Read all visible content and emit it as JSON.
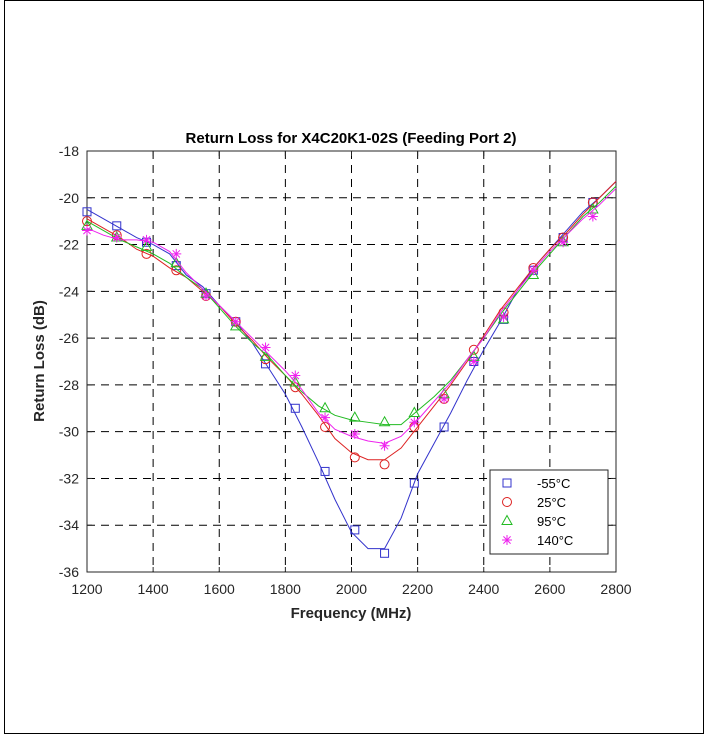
{
  "chart_data": {
    "type": "line",
    "title": "Return Loss for X4C20K1-02S (Feeding Port 2)",
    "xlabel": "Frequency (MHz)",
    "ylabel": "Return Loss (dB)",
    "xlim": [
      1200,
      2800
    ],
    "ylim": [
      -36,
      -18
    ],
    "xticks": [
      "1200",
      "1400",
      "1600",
      "1800",
      "2000",
      "2200",
      "2400",
      "2600",
      "2800"
    ],
    "yticks": [
      "-18",
      "-20",
      "-22",
      "-24",
      "-26",
      "-28",
      "-30",
      "-32",
      "-34",
      "-36"
    ],
    "grid": true,
    "legend_position": "bottom-right",
    "series": [
      {
        "name": "-55°C",
        "color": "#3333cc",
        "marker": "square",
        "x": [
          1200,
          1290,
          1380,
          1470,
          1560,
          1650,
          1740,
          1830,
          1920,
          2010,
          2100,
          2190,
          2280,
          2370,
          2460,
          2550,
          2640,
          2730
        ],
        "y": [
          -20.6,
          -21.2,
          -21.9,
          -22.9,
          -24.1,
          -25.3,
          -27.1,
          -29.0,
          -31.7,
          -34.2,
          -35.2,
          -32.2,
          -29.8,
          -27.0,
          -25.2,
          -23.1,
          -21.7,
          -20.2
        ],
        "line_x": [
          1200,
          1250,
          1300,
          1350,
          1400,
          1450,
          1500,
          1550,
          1600,
          1650,
          1700,
          1750,
          1800,
          1850,
          1900,
          1950,
          2000,
          2050,
          2100,
          2150,
          2200,
          2250,
          2300,
          2350,
          2400,
          2450,
          2500,
          2550,
          2600,
          2650,
          2700,
          2750,
          2800
        ],
        "line_y": [
          -20.5,
          -20.9,
          -21.3,
          -21.7,
          -22.0,
          -22.4,
          -23.3,
          -23.8,
          -24.6,
          -25.3,
          -26.2,
          -27.3,
          -28.4,
          -29.8,
          -31.3,
          -32.9,
          -34.3,
          -35.0,
          -35.0,
          -33.7,
          -31.8,
          -30.5,
          -29.2,
          -27.8,
          -26.5,
          -25.3,
          -24.0,
          -23.0,
          -22.2,
          -21.4,
          -20.6,
          -20.0,
          -19.3
        ]
      },
      {
        "name": "25°C",
        "color": "#dd2222",
        "marker": "circle",
        "x": [
          1200,
          1290,
          1380,
          1470,
          1560,
          1650,
          1740,
          1830,
          1920,
          2010,
          2100,
          2190,
          2280,
          2370,
          2460,
          2550,
          2640,
          2730
        ],
        "y": [
          -21.0,
          -21.6,
          -22.4,
          -23.1,
          -24.2,
          -25.3,
          -26.9,
          -28.1,
          -29.8,
          -31.1,
          -31.4,
          -29.8,
          -28.6,
          -26.5,
          -24.9,
          -23.0,
          -21.7,
          -20.2
        ],
        "line_x": [
          1200,
          1250,
          1300,
          1350,
          1400,
          1450,
          1500,
          1550,
          1600,
          1650,
          1700,
          1750,
          1800,
          1850,
          1900,
          1950,
          2000,
          2050,
          2100,
          2150,
          2200,
          2250,
          2300,
          2350,
          2400,
          2450,
          2500,
          2550,
          2600,
          2650,
          2700,
          2750,
          2800
        ],
        "line_y": [
          -20.9,
          -21.3,
          -21.7,
          -22.2,
          -22.5,
          -23.0,
          -23.4,
          -24.0,
          -24.6,
          -25.4,
          -26.1,
          -26.9,
          -27.6,
          -28.4,
          -29.3,
          -30.3,
          -30.9,
          -31.2,
          -31.2,
          -30.7,
          -29.8,
          -28.9,
          -28.0,
          -27.0,
          -25.9,
          -24.8,
          -23.9,
          -23.0,
          -22.2,
          -21.5,
          -20.7,
          -20.0,
          -19.3
        ]
      },
      {
        "name": "95°C",
        "color": "#22bb22",
        "marker": "triangle",
        "x": [
          1200,
          1290,
          1380,
          1470,
          1560,
          1650,
          1740,
          1830,
          1920,
          2010,
          2100,
          2190,
          2280,
          2370,
          2460,
          2550,
          2640,
          2730
        ],
        "y": [
          -21.2,
          -21.7,
          -22.1,
          -22.8,
          -24.1,
          -25.5,
          -26.8,
          -27.9,
          -29.0,
          -29.4,
          -29.6,
          -29.2,
          -28.4,
          -26.8,
          -25.2,
          -23.3,
          -21.9,
          -20.5
        ],
        "line_x": [
          1200,
          1250,
          1300,
          1350,
          1400,
          1450,
          1500,
          1550,
          1600,
          1650,
          1700,
          1750,
          1800,
          1850,
          1900,
          1950,
          2000,
          2050,
          2100,
          2150,
          2200,
          2250,
          2300,
          2350,
          2400,
          2450,
          2500,
          2550,
          2600,
          2650,
          2700,
          2750,
          2800
        ],
        "line_y": [
          -21.0,
          -21.4,
          -21.8,
          -22.1,
          -22.4,
          -22.8,
          -23.4,
          -23.9,
          -24.7,
          -25.5,
          -26.2,
          -26.8,
          -27.6,
          -28.3,
          -28.9,
          -29.3,
          -29.5,
          -29.6,
          -29.7,
          -29.7,
          -29.1,
          -28.5,
          -27.8,
          -26.9,
          -26.0,
          -25.0,
          -24.1,
          -23.2,
          -22.4,
          -21.6,
          -20.8,
          -20.2,
          -19.5
        ]
      },
      {
        "name": "140°C",
        "color": "#ee22ee",
        "marker": "asterisk",
        "x": [
          1200,
          1290,
          1380,
          1470,
          1560,
          1650,
          1740,
          1830,
          1920,
          2010,
          2100,
          2190,
          2280,
          2370,
          2460,
          2550,
          2640,
          2730
        ],
        "y": [
          -21.4,
          -21.7,
          -21.8,
          -22.4,
          -24.2,
          -25.3,
          -26.4,
          -27.6,
          -29.4,
          -30.1,
          -30.6,
          -29.6,
          -28.6,
          -27.0,
          -25.1,
          -23.1,
          -21.9,
          -20.8
        ],
        "line_x": [
          1200,
          1250,
          1300,
          1350,
          1400,
          1450,
          1500,
          1550,
          1600,
          1650,
          1700,
          1750,
          1800,
          1850,
          1900,
          1950,
          2000,
          2050,
          2100,
          2150,
          2200,
          2250,
          2300,
          2350,
          2400,
          2450,
          2500,
          2550,
          2600,
          2650,
          2700,
          2750,
          2800
        ],
        "line_y": [
          -21.3,
          -21.6,
          -21.8,
          -21.8,
          -21.9,
          -22.3,
          -23.2,
          -23.9,
          -24.6,
          -25.3,
          -26.0,
          -26.7,
          -27.4,
          -28.2,
          -29.2,
          -29.9,
          -30.2,
          -30.4,
          -30.5,
          -30.2,
          -29.5,
          -28.7,
          -27.9,
          -26.9,
          -26.0,
          -24.9,
          -24.0,
          -23.1,
          -22.3,
          -21.6,
          -20.9,
          -20.3,
          -19.6
        ]
      }
    ]
  }
}
